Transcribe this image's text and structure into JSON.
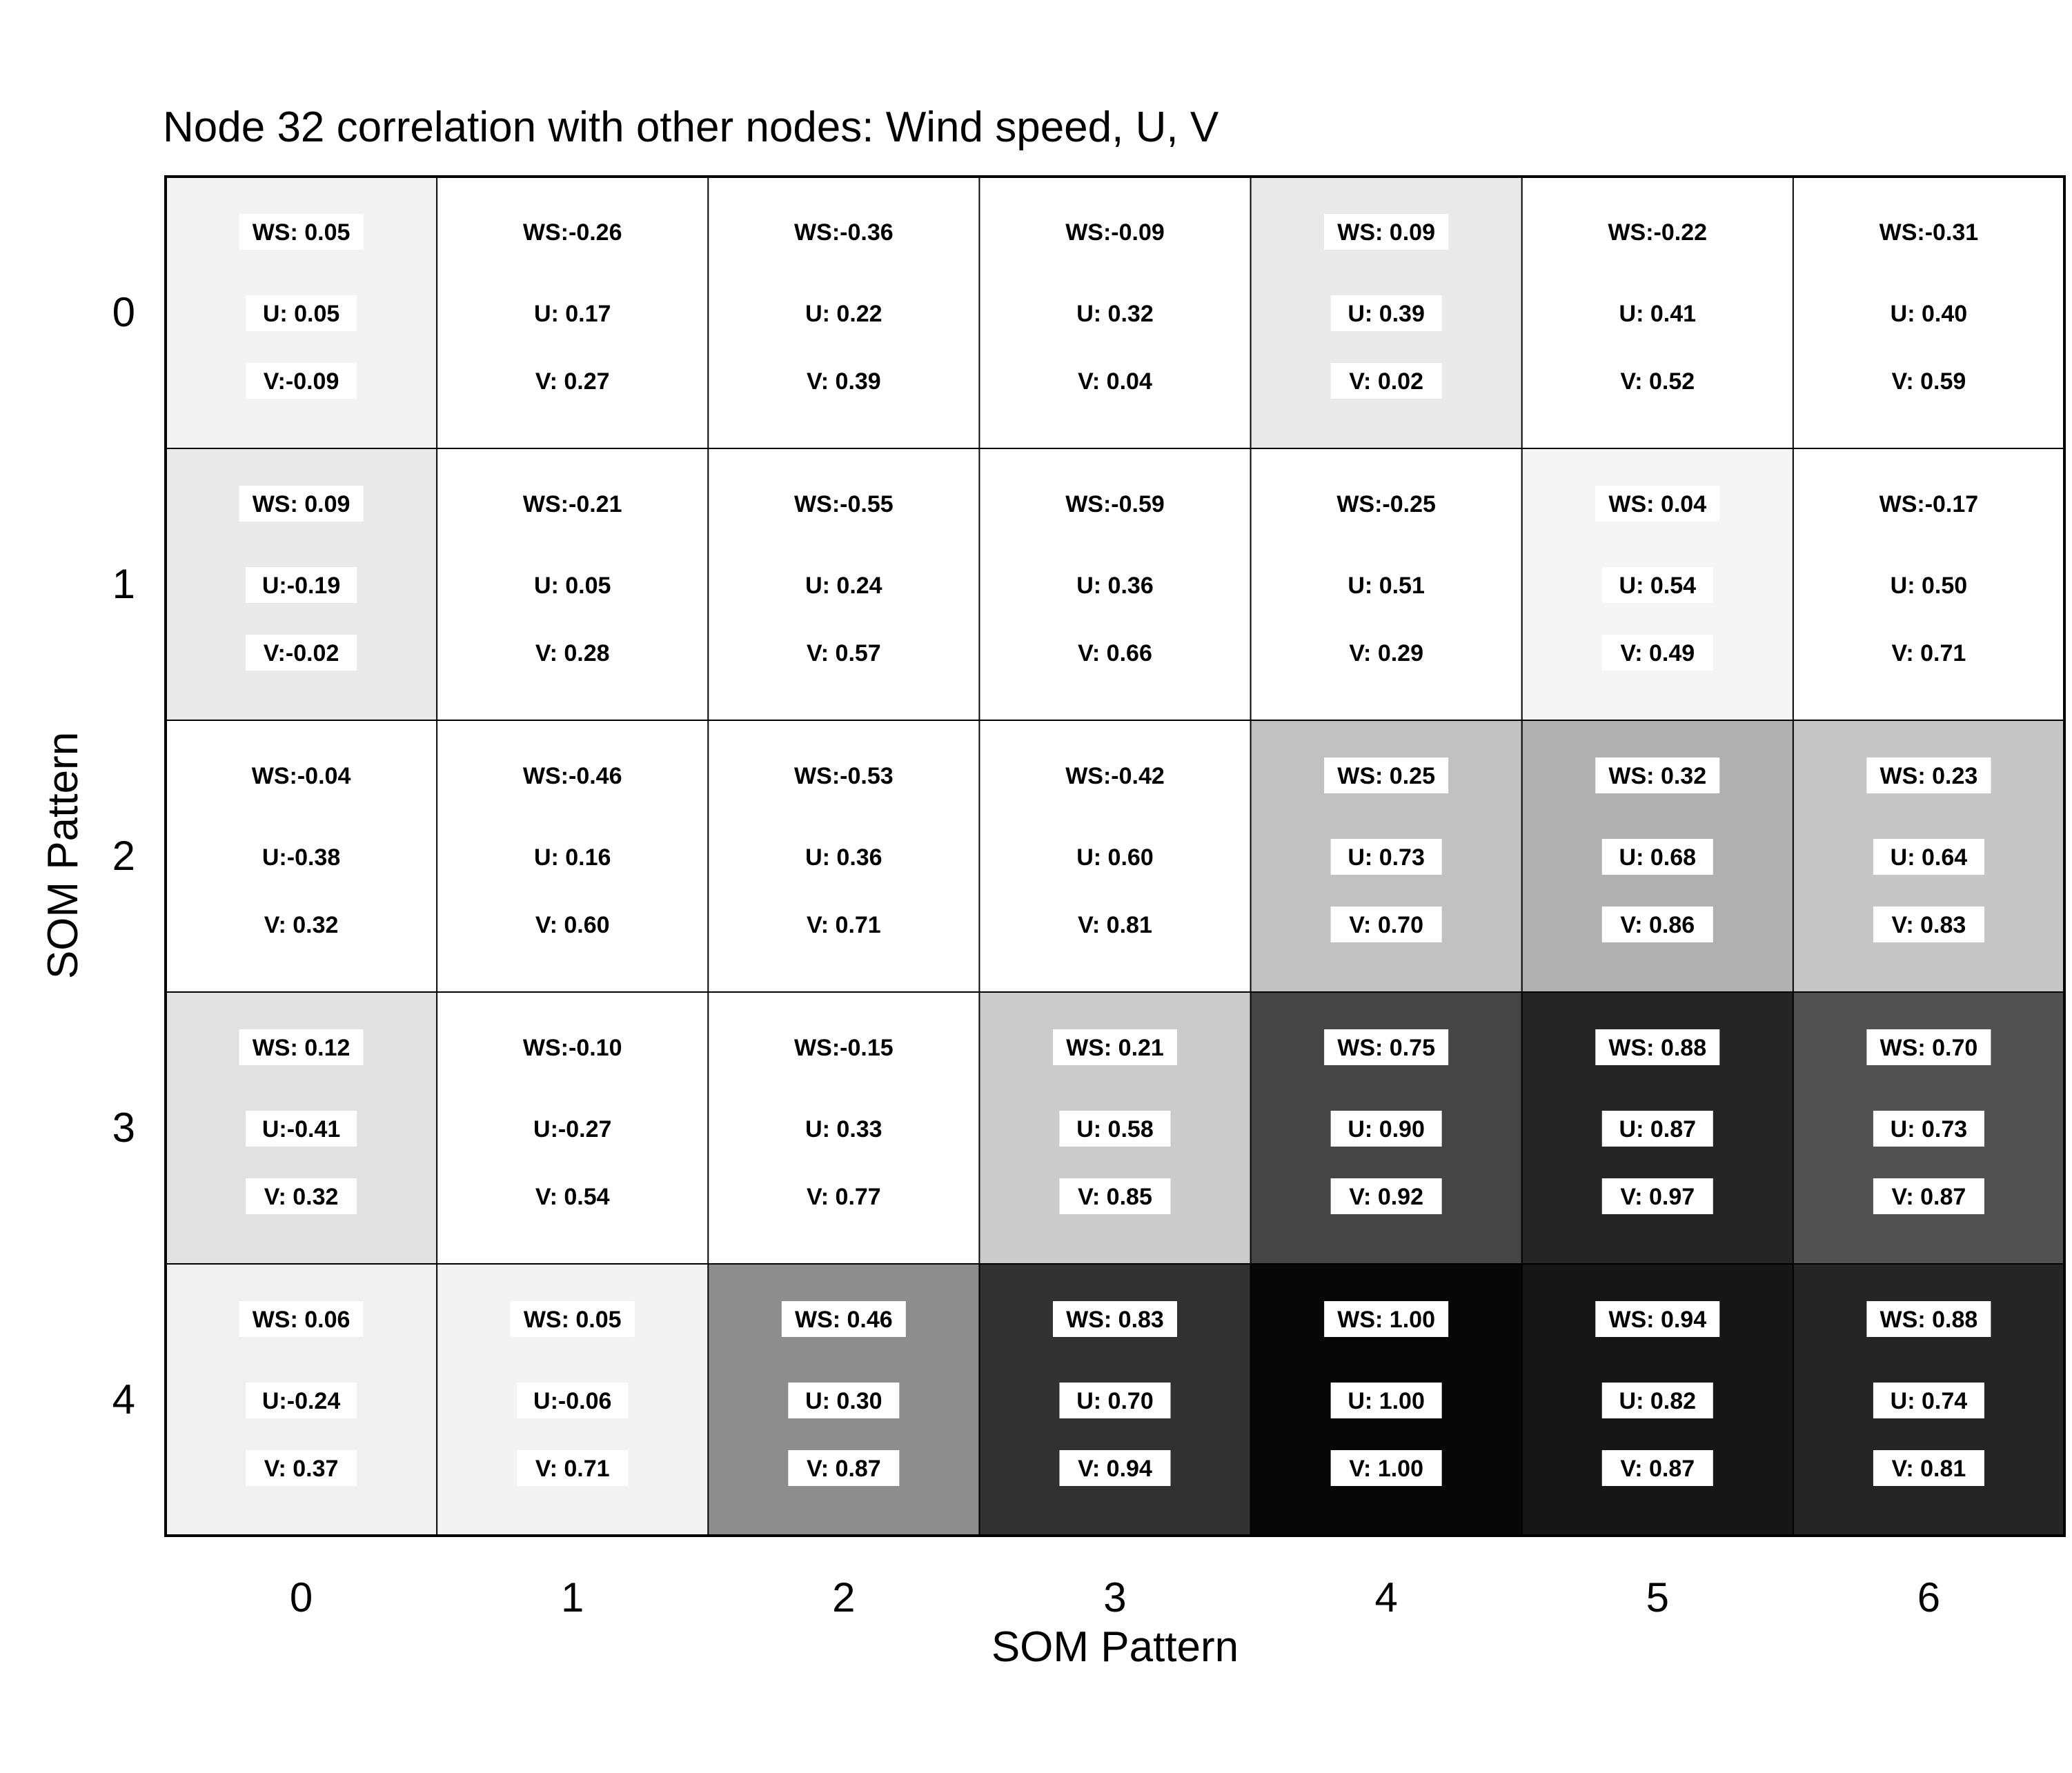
{
  "chart_data": {
    "type": "heatmap",
    "title": "Node 32 correlation with other nodes: Wind speed, U, V",
    "xlabel": "SOM Pattern",
    "ylabel": "SOM Pattern",
    "x_ticks": [
      "0",
      "1",
      "2",
      "3",
      "4",
      "5",
      "6"
    ],
    "y_ticks": [
      "0",
      "1",
      "2",
      "3",
      "4"
    ],
    "colormap": "white-to-black by WS (values <= 0 shown white)",
    "rows": [
      [
        {
          "ws": "0.05",
          "u": "0.05",
          "v": "-0.09",
          "ws_value": 0.05
        },
        {
          "ws": "-0.26",
          "u": "0.17",
          "v": "0.27",
          "ws_value": -0.26
        },
        {
          "ws": "-0.36",
          "u": "0.22",
          "v": "0.39",
          "ws_value": -0.36
        },
        {
          "ws": "-0.09",
          "u": "0.32",
          "v": "0.04",
          "ws_value": -0.09
        },
        {
          "ws": "0.09",
          "u": "0.39",
          "v": "0.02",
          "ws_value": 0.09
        },
        {
          "ws": "-0.22",
          "u": "0.41",
          "v": "0.52",
          "ws_value": -0.22
        },
        {
          "ws": "-0.31",
          "u": "0.40",
          "v": "0.59",
          "ws_value": -0.31
        }
      ],
      [
        {
          "ws": "0.09",
          "u": "-0.19",
          "v": "-0.02",
          "ws_value": 0.09
        },
        {
          "ws": "-0.21",
          "u": "0.05",
          "v": "0.28",
          "ws_value": -0.21
        },
        {
          "ws": "-0.55",
          "u": "0.24",
          "v": "0.57",
          "ws_value": -0.55
        },
        {
          "ws": "-0.59",
          "u": "0.36",
          "v": "0.66",
          "ws_value": -0.59
        },
        {
          "ws": "-0.25",
          "u": "0.51",
          "v": "0.29",
          "ws_value": -0.25
        },
        {
          "ws": "0.04",
          "u": "0.54",
          "v": "0.49",
          "ws_value": 0.04
        },
        {
          "ws": "-0.17",
          "u": "0.50",
          "v": "0.71",
          "ws_value": -0.17
        }
      ],
      [
        {
          "ws": "-0.04",
          "u": "-0.38",
          "v": "0.32",
          "ws_value": -0.04
        },
        {
          "ws": "-0.46",
          "u": "0.16",
          "v": "0.60",
          "ws_value": -0.46
        },
        {
          "ws": "-0.53",
          "u": "0.36",
          "v": "0.71",
          "ws_value": -0.53
        },
        {
          "ws": "-0.42",
          "u": "0.60",
          "v": "0.81",
          "ws_value": -0.42
        },
        {
          "ws": "0.25",
          "u": "0.73",
          "v": "0.70",
          "ws_value": 0.25
        },
        {
          "ws": "0.32",
          "u": "0.68",
          "v": "0.86",
          "ws_value": 0.32
        },
        {
          "ws": "0.23",
          "u": "0.64",
          "v": "0.83",
          "ws_value": 0.23
        }
      ],
      [
        {
          "ws": "0.12",
          "u": "-0.41",
          "v": "0.32",
          "ws_value": 0.12
        },
        {
          "ws": "-0.10",
          "u": "-0.27",
          "v": "0.54",
          "ws_value": -0.1
        },
        {
          "ws": "-0.15",
          "u": "0.33",
          "v": "0.77",
          "ws_value": -0.15
        },
        {
          "ws": "0.21",
          "u": "0.58",
          "v": "0.85",
          "ws_value": 0.21
        },
        {
          "ws": "0.75",
          "u": "0.90",
          "v": "0.92",
          "ws_value": 0.75
        },
        {
          "ws": "0.88",
          "u": "0.87",
          "v": "0.97",
          "ws_value": 0.88
        },
        {
          "ws": "0.70",
          "u": "0.73",
          "v": "0.87",
          "ws_value": 0.7
        }
      ],
      [
        {
          "ws": "0.06",
          "u": "-0.24",
          "v": "0.37",
          "ws_value": 0.06
        },
        {
          "ws": "0.05",
          "u": "-0.06",
          "v": "0.71",
          "ws_value": 0.05
        },
        {
          "ws": "0.46",
          "u": "0.30",
          "v": "0.87",
          "ws_value": 0.46
        },
        {
          "ws": "0.83",
          "u": "0.70",
          "v": "0.94",
          "ws_value": 0.83
        },
        {
          "ws": "1.00",
          "u": "1.00",
          "v": "1.00",
          "ws_value": 1.0
        },
        {
          "ws": "0.94",
          "u": "0.82",
          "v": "0.87",
          "ws_value": 0.94
        },
        {
          "ws": "0.88",
          "u": "0.74",
          "v": "0.81",
          "ws_value": 0.88
        }
      ]
    ]
  }
}
